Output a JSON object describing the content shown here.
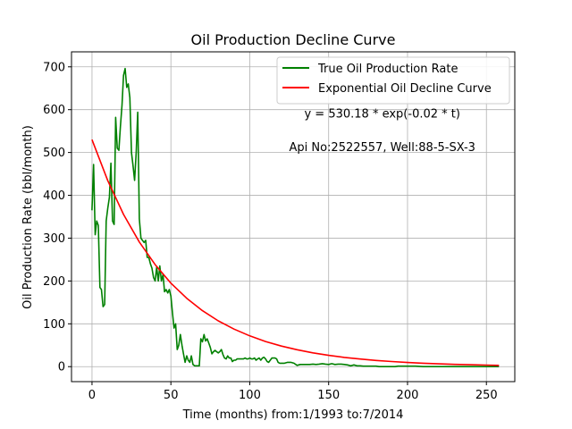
{
  "chart_data": {
    "type": "line",
    "title": "Oil Production Decline Curve",
    "xlabel": "Time (months) from:1/1993 to:7/2014",
    "ylabel": "Oil Production Rate (bbl/month)",
    "xlim": [
      -13,
      268
    ],
    "ylim": [
      -35,
      735
    ],
    "xticks": [
      0,
      50,
      100,
      150,
      200,
      250
    ],
    "yticks": [
      0,
      100,
      200,
      300,
      400,
      500,
      600,
      700
    ],
    "grid": true,
    "legend_position": "top-right",
    "annotations": [
      {
        "text": "y = 530.18 * exp(-0.02 * t)",
        "x": 184,
        "y": 582
      },
      {
        "text": "Api No:2522557, Well:88-5-SX-3",
        "x": 184,
        "y": 503
      }
    ],
    "series": [
      {
        "name": "True Oil Production Rate",
        "color": "#008000",
        "x": [
          0,
          1,
          2,
          3,
          4,
          5,
          6,
          7,
          8,
          9,
          10,
          11,
          12,
          13,
          14,
          15,
          16,
          17,
          18,
          19,
          20,
          21,
          22,
          23,
          24,
          25,
          26,
          27,
          28,
          29,
          30,
          31,
          32,
          33,
          34,
          35,
          36,
          37,
          38,
          39,
          40,
          41,
          42,
          43,
          44,
          45,
          46,
          47,
          48,
          49,
          50,
          51,
          52,
          53,
          54,
          55,
          56,
          57,
          58,
          59,
          60,
          61,
          62,
          63,
          64,
          65,
          66,
          67,
          68,
          69,
          70,
          71,
          72,
          73,
          74,
          75,
          76,
          77,
          78,
          79,
          80,
          81,
          82,
          83,
          84,
          85,
          86,
          87,
          88,
          89,
          90,
          91,
          92,
          93,
          94,
          95,
          96,
          97,
          98,
          99,
          100,
          101,
          102,
          103,
          104,
          105,
          106,
          107,
          108,
          109,
          110,
          111,
          112,
          113,
          114,
          115,
          116,
          117,
          118,
          119,
          120,
          122,
          124,
          126,
          128,
          130,
          132,
          134,
          136,
          138,
          140,
          142,
          144,
          146,
          148,
          150,
          152,
          154,
          156,
          158,
          160,
          162,
          164,
          166,
          168,
          170,
          172,
          174,
          176,
          178,
          180,
          182,
          184,
          186,
          188,
          190,
          192,
          194,
          196,
          198,
          200,
          205,
          210,
          215,
          220,
          225,
          230,
          235,
          240,
          245,
          250,
          255,
          258
        ],
        "values": [
          365,
          472,
          308,
          340,
          330,
          185,
          180,
          140,
          145,
          340,
          370,
          395,
          475,
          340,
          332,
          582,
          510,
          505,
          560,
          610,
          680,
          696,
          652,
          660,
          628,
          500,
          470,
          435,
          500,
          594,
          345,
          300,
          295,
          290,
          295,
          255,
          255,
          240,
          230,
          208,
          200,
          232,
          200,
          235,
          200,
          215,
          175,
          180,
          172,
          180,
          165,
          125,
          90,
          100,
          40,
          50,
          75,
          50,
          30,
          10,
          25,
          15,
          10,
          25,
          5,
          2,
          2,
          2,
          2,
          65,
          58,
          75,
          60,
          65,
          55,
          45,
          30,
          35,
          38,
          35,
          32,
          35,
          40,
          28,
          20,
          18,
          25,
          20,
          20,
          12,
          15,
          15,
          18,
          18,
          18,
          18,
          18,
          20,
          18,
          18,
          20,
          18,
          18,
          20,
          15,
          18,
          20,
          15,
          20,
          22,
          18,
          12,
          10,
          15,
          20,
          20,
          20,
          18,
          10,
          8,
          8,
          8,
          10,
          10,
          8,
          3,
          5,
          5,
          5,
          5,
          6,
          5,
          6,
          7,
          6,
          5,
          7,
          5,
          6,
          6,
          5,
          4,
          2,
          4,
          2,
          2,
          1,
          1,
          1,
          1,
          1,
          0,
          0,
          0,
          0,
          0,
          0,
          1,
          1,
          1,
          1,
          1,
          0,
          0,
          0,
          0,
          0,
          0,
          0,
          0,
          0,
          0,
          0
        ]
      },
      {
        "name": "Exponential Oil Decline Curve",
        "color": "#ff0000",
        "formula": "530.18*exp(-0.02*t)",
        "x": [
          0,
          10,
          20,
          30,
          40,
          50,
          60,
          70,
          80,
          90,
          100,
          110,
          120,
          130,
          140,
          150,
          160,
          170,
          180,
          190,
          200,
          210,
          220,
          230,
          240,
          250,
          258
        ],
        "values": [
          530.18,
          434.1,
          355.4,
          291.0,
          238.2,
          195.0,
          159.7,
          130.7,
          107.0,
          87.6,
          71.8,
          58.7,
          48.1,
          39.4,
          32.2,
          26.4,
          21.6,
          17.7,
          14.5,
          11.9,
          9.7,
          8.0,
          6.5,
          5.3,
          4.4,
          3.6,
          3.0
        ]
      }
    ]
  }
}
